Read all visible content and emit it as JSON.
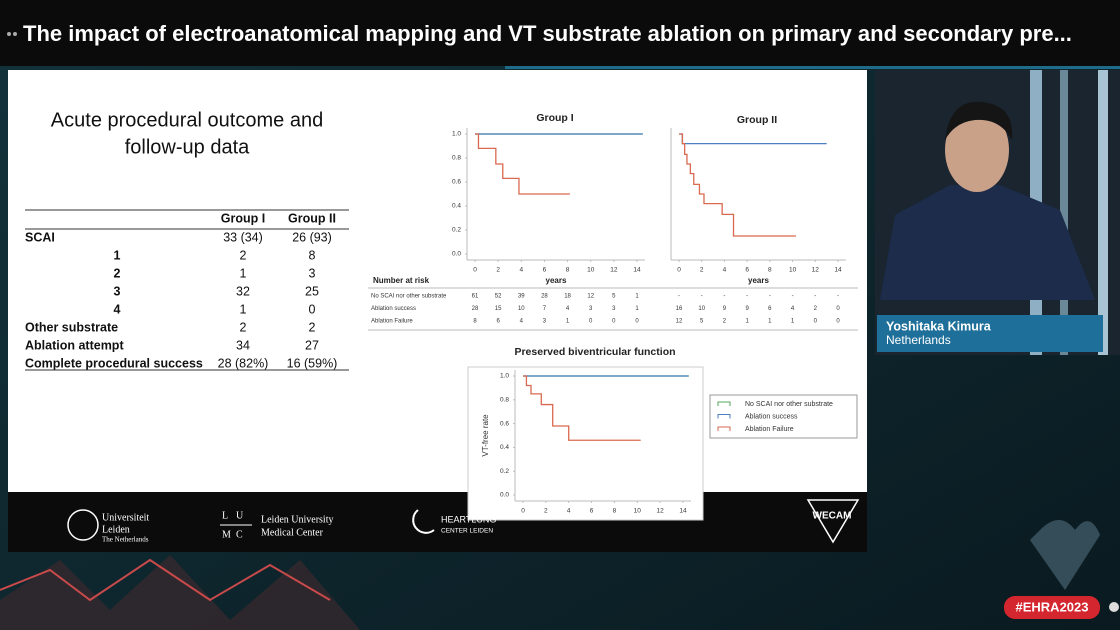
{
  "header": {
    "title": "The impact of electroanatomical mapping and VT substrate ablation on primary and secondary pre..."
  },
  "slide": {
    "title_lines": [
      "Acute procedural outcome and",
      "follow-up data"
    ]
  },
  "table": {
    "columns": [
      "Group I",
      "Group II"
    ],
    "rows": [
      {
        "label": "SCAI",
        "values": [
          "33 (34)",
          "26 (93)"
        ]
      },
      {
        "label": "1",
        "values": [
          "2",
          "8"
        ]
      },
      {
        "label": "2",
        "values": [
          "1",
          "3"
        ]
      },
      {
        "label": "3",
        "values": [
          "32",
          "25"
        ]
      },
      {
        "label": "4",
        "values": [
          "1",
          "0"
        ]
      },
      {
        "label": "Other substrate",
        "values": [
          "2",
          "2"
        ]
      },
      {
        "label": "Ablation attempt",
        "values": [
          "34",
          "27"
        ]
      },
      {
        "label": "Complete procedural success",
        "values": [
          "28 (82%)",
          "16 (59%)"
        ]
      }
    ]
  },
  "chart_data": [
    {
      "type": "line",
      "step": true,
      "title": "Group I",
      "xlabel": "years",
      "xlim": [
        0,
        14
      ],
      "xticks": [
        0,
        2,
        4,
        6,
        8,
        10,
        12,
        14
      ],
      "ylim": [
        0,
        1
      ],
      "yticks": [
        {
          "value": 0,
          "label": "0.0"
        },
        {
          "value": 0.2,
          "label": "0.2"
        },
        {
          "value": 0.4,
          "label": "0.4"
        },
        {
          "value": 0.6,
          "label": "0.6"
        },
        {
          "value": 0.8,
          "label": "0.8"
        },
        {
          "value": 1,
          "label": "1.0"
        }
      ],
      "series": [
        {
          "name": "No SCAI nor other substrate",
          "color": "#5aaa5a",
          "x": [
            0,
            14.5
          ],
          "values": [
            1,
            1
          ]
        },
        {
          "name": "Ablation success",
          "color": "#4a7fc1",
          "x": [
            0,
            14.5
          ],
          "values": [
            1,
            1
          ]
        },
        {
          "name": "Ablation Failure",
          "color": "#d9694f",
          "x": [
            0,
            0.3,
            1.8,
            2.4,
            3.8,
            8.2
          ],
          "values": [
            1,
            0.88,
            0.75,
            0.63,
            0.5,
            0.5
          ]
        }
      ]
    },
    {
      "type": "line",
      "step": true,
      "title": "Group II",
      "xlabel": "years",
      "xlim": [
        0,
        14
      ],
      "xticks": [
        0,
        2,
        4,
        6,
        8,
        10,
        12,
        14
      ],
      "ylim": [
        0,
        1
      ],
      "series": [
        {
          "name": "Ablation success",
          "color": "#4a7fc1",
          "x": [
            0,
            0.3,
            13
          ],
          "values": [
            1,
            0.92,
            0.92
          ]
        },
        {
          "name": "Ablation Failure",
          "color": "#d9694f",
          "x": [
            0,
            0.3,
            0.5,
            0.7,
            1,
            1.3,
            1.8,
            2.2,
            3.8,
            4.8,
            10.3
          ],
          "values": [
            1,
            0.92,
            0.83,
            0.75,
            0.67,
            0.58,
            0.5,
            0.42,
            0.33,
            0.15,
            0.15
          ]
        }
      ]
    },
    {
      "type": "line",
      "step": true,
      "title": "Preserved biventricular function",
      "ylabel": "VT-free rate",
      "xlim": [
        0,
        14
      ],
      "xticks": [
        0,
        2,
        4,
        6,
        8,
        10,
        12,
        14
      ],
      "ylim": [
        0,
        1
      ],
      "yticks": [
        {
          "value": 0,
          "label": "0.0"
        },
        {
          "value": 0.2,
          "label": "0.2"
        },
        {
          "value": 0.4,
          "label": "0.4"
        },
        {
          "value": 0.6,
          "label": "0.6"
        },
        {
          "value": 0.8,
          "label": "0.8"
        },
        {
          "value": 1,
          "label": "1.0"
        }
      ],
      "legend": "right",
      "series": [
        {
          "name": "No SCAI nor other substrate",
          "color": "#5aaa5a",
          "x": [
            0,
            14.5
          ],
          "values": [
            1,
            1
          ]
        },
        {
          "name": "Ablation success",
          "color": "#4a7fc1",
          "x": [
            0,
            14.5
          ],
          "values": [
            1,
            1
          ]
        },
        {
          "name": "Ablation Failure",
          "color": "#d9694f",
          "x": [
            0,
            0.3,
            0.7,
            1.6,
            2.6,
            4,
            10.3
          ],
          "values": [
            1,
            0.92,
            0.85,
            0.76,
            0.58,
            0.46,
            0.46
          ]
        }
      ]
    }
  ],
  "risk_table": {
    "title": "Number at risk",
    "rows": [
      {
        "label": "No SCAI nor other substrate",
        "counts": [
          [
            61,
            52,
            39,
            28,
            18,
            12,
            5,
            1
          ],
          [
            "-",
            "-",
            "-",
            "-",
            "-",
            "-",
            "-",
            "-"
          ]
        ]
      },
      {
        "label": "Ablation success",
        "counts": [
          [
            28,
            15,
            10,
            7,
            4,
            3,
            3,
            1
          ],
          [
            16,
            10,
            9,
            9,
            6,
            4,
            2,
            0
          ]
        ]
      },
      {
        "label": "Ablation Failure",
        "counts": [
          [
            8,
            6,
            4,
            3,
            1,
            0,
            0,
            0
          ],
          [
            12,
            5,
            2,
            1,
            1,
            1,
            0,
            0
          ]
        ]
      }
    ]
  },
  "logos": [
    {
      "lines": [
        "Universiteit",
        "Leiden",
        "The Netherlands"
      ]
    },
    {
      "mark": [
        "L",
        "U",
        "M",
        "C"
      ],
      "lines": [
        "Leiden University",
        "Medical Center"
      ]
    },
    {
      "lines": [
        "HEARTLUNG",
        "CENTER LEIDEN"
      ]
    },
    {
      "lines": [
        "WECAM"
      ]
    }
  ],
  "speaker": {
    "name": "Yoshitaka Kimura",
    "country": "Netherlands"
  },
  "event": {
    "hashtag": "#EHRA2023"
  }
}
